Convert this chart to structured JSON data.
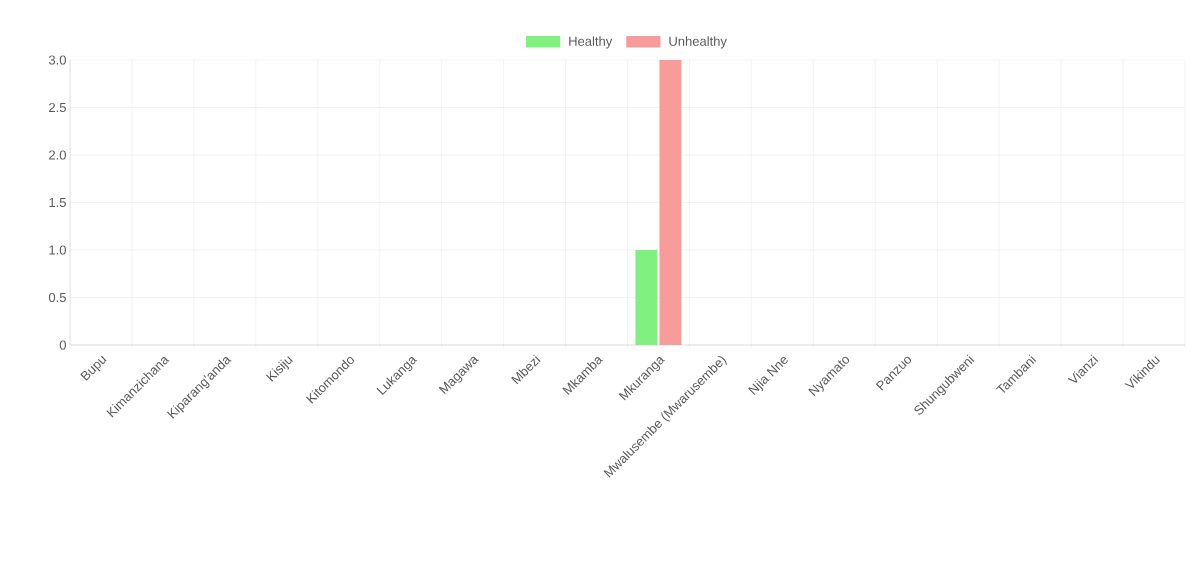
{
  "chart_data": {
    "type": "bar",
    "categories": [
      "Bupu",
      "Kimanzichana",
      "Kiparang'anda",
      "Kisiju",
      "Kitomondo",
      "Lukanga",
      "Magawa",
      "Mbezi",
      "Mkamba",
      "Mkuranga",
      "Mwalusembe (Mwarusembe)",
      "Njia Nne",
      "Nyamato",
      "Panzuo",
      "Shungubweni",
      "Tambani",
      "Vianzi",
      "Vikindu"
    ],
    "series": [
      {
        "name": "Healthy",
        "color": "#80f080",
        "values": [
          0,
          0,
          0,
          0,
          0,
          0,
          0,
          0,
          0,
          1,
          0,
          0,
          0,
          0,
          0,
          0,
          0,
          0
        ]
      },
      {
        "name": "Unhealthy",
        "color": "#f89b9b",
        "values": [
          0,
          0,
          0,
          0,
          0,
          0,
          0,
          0,
          0,
          3,
          0,
          0,
          0,
          0,
          0,
          0,
          0,
          0
        ]
      }
    ],
    "ylim": [
      0,
      3
    ],
    "yticks": [
      0,
      0.5,
      {
        "value": 1,
        "label": "1.0"
      },
      1.5,
      {
        "value": 2,
        "label": "2.0"
      },
      2.5,
      {
        "value": 3,
        "label": "3.0"
      }
    ],
    "grid": true,
    "legend": "top"
  }
}
